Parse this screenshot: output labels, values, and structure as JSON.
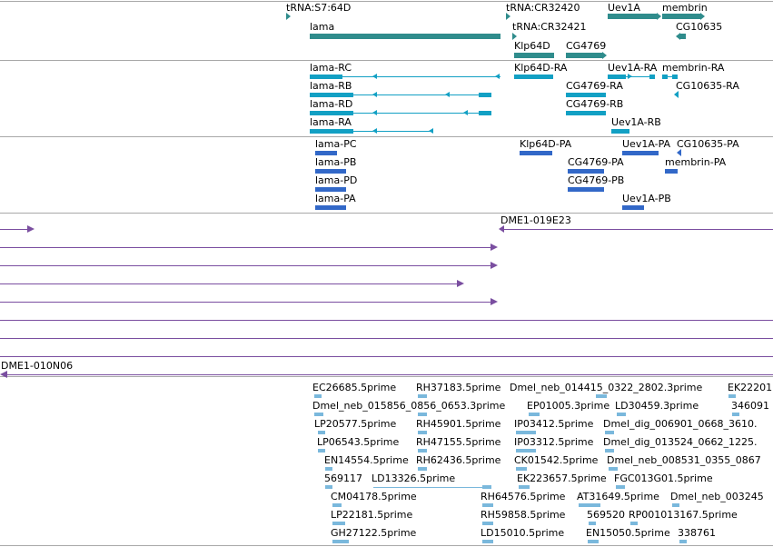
{
  "colors": {
    "gene": "#2f8c8c",
    "transcript": "#12a0c4",
    "protein": "#3268c8",
    "clone": "#7a4ea0",
    "est": "#7ab8dc",
    "separator": "#a8a8a8"
  },
  "tracks": {
    "genes": {
      "trna_s7": "tRNA:S7:64D",
      "trna_cr32420": "tRNA:CR32420",
      "uev1a": "Uev1A",
      "membrin": "membrin",
      "lama": "lama",
      "trna_cr32421": "tRNA:CR32421",
      "cg10635": "CG10635",
      "klp64d": "Klp64D",
      "cg4769": "CG4769"
    },
    "transcripts": {
      "lama_rc": "lama-RC",
      "klp64d_ra": "Klp64D-RA",
      "uev1a_ra": "Uev1A-RA",
      "membrin_ra": "membrin-RA",
      "lama_rb": "lama-RB",
      "cg4769_ra": "CG4769-RA",
      "cg10635_ra": "CG10635-RA",
      "lama_rd": "lama-RD",
      "cg4769_rb": "CG4769-RB",
      "lama_ra": "lama-RA",
      "uev1a_rb": "Uev1A-RB"
    },
    "proteins": {
      "lama_pc": "lama-PC",
      "klp64d_pa": "Klp64D-PA",
      "uev1a_pa": "Uev1A-PA",
      "cg10635_pa": "CG10635-PA",
      "lama_pb": "lama-PB",
      "cg4769_pa": "CG4769-PA",
      "membrin_pa": "membrin-PA",
      "lama_pd": "lama-PD",
      "cg4769_pb": "CG4769-PB",
      "lama_pa": "lama-PA",
      "uev1a_pb": "Uev1A-PB"
    },
    "clones": {
      "c019e23": "DME1-019E23",
      "c010n06": "DME1-010N06"
    },
    "ests": [
      [
        "EC26685.5prime",
        "RH37183.5prime",
        "Dmel_neb_014415_0322_2802.3prime",
        "EK22201"
      ],
      [
        "Dmel_neb_015856_0856_0653.3prime",
        "EP01005.3prime",
        "LD30459.3prime",
        "346091"
      ],
      [
        "LP20577.5prime",
        "RH45901.5prime",
        "IP03412.5prime",
        "Dmel_dig_006901_0668_3610."
      ],
      [
        "LP06543.5prime",
        "RH47155.5prime",
        "IP03312.5prime",
        "Dmel_dig_013524_0662_1225."
      ],
      [
        "EN14554.5prime",
        "RH62436.5prime",
        "CK01542.5prime",
        "Dmel_neb_008531_0355_0867"
      ],
      [
        "569117",
        "LD13326.5prime",
        "EK223657.5prime",
        "FGC013G01.5prime"
      ],
      [
        "CM04178.5prime",
        "RH64576.5prime",
        "AT31649.5prime",
        "Dmel_neb_003245"
      ],
      [
        "LP22181.5prime",
        "RH59858.5prime",
        "569520",
        "RP001013167.5prime"
      ],
      [
        "GH27122.5prime",
        "LD15010.5prime",
        "EN15050.5prime",
        "338761"
      ]
    ]
  }
}
